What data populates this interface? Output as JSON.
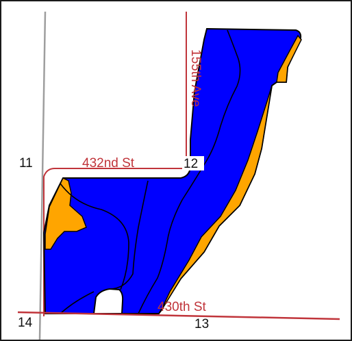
{
  "map": {
    "roads": {
      "road_155th_ave": "155th Ave",
      "road_432nd_st": "432nd St",
      "road_430th_st": "430th St"
    },
    "sections": {
      "section_11": "11",
      "section_12": "12",
      "section_13": "13",
      "section_14": "14"
    },
    "colors": {
      "field_fill": "#0000ff",
      "orange_zone": "#ffa500",
      "road_line": "#c0343a",
      "section_line": "#9e9e9e",
      "outline": "#000000",
      "background": "#ffffff"
    }
  }
}
